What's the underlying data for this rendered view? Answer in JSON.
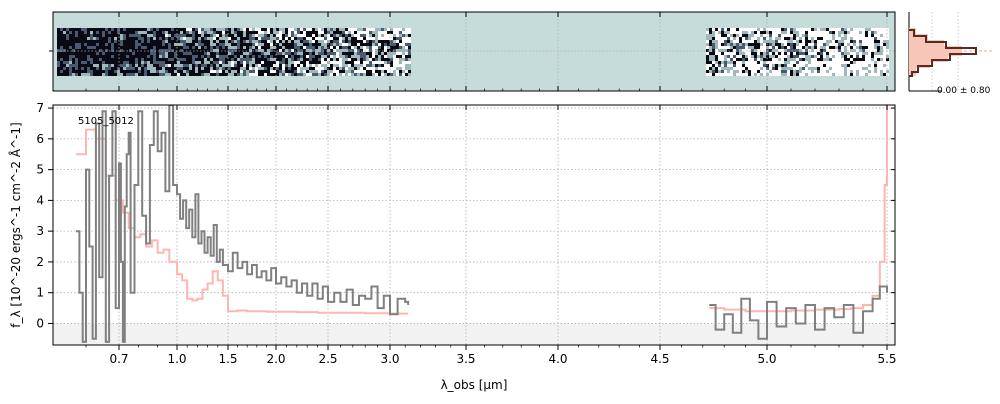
{
  "chart_data": {
    "type": "line",
    "object_label": "5105_5012",
    "xlabel": "λ_obs [μm]",
    "ylabel": "f_λ [10^-20 ergs^-1 cm^-2 Å^-1]",
    "xticks": [
      "0.7",
      "1.0",
      "1.5",
      "2.0",
      "2.5",
      "3.0",
      "3.5",
      "4.0",
      "4.5",
      "5.0",
      "5.5"
    ],
    "yticks": [
      "0",
      "1",
      "2",
      "3",
      "4",
      "5",
      "6",
      "7"
    ],
    "ylim": [
      -0.7,
      7.1
    ],
    "grid": true,
    "inset_label": "-0.00 ± 0.80",
    "colors": {
      "data": "#808080",
      "model": "#ffb6b0",
      "image_bg": "#c5dcda",
      "zero_band": "#f2f2f2",
      "inset_hist": "#5a2a20",
      "inset_fill": "#f7c6b8"
    },
    "series": [
      {
        "name": "",
        "role": "data",
        "x": [
          0.57,
          0.58,
          0.59,
          0.6,
          0.61,
          0.62,
          0.63,
          0.64,
          0.65,
          0.66,
          0.67,
          0.68,
          0.69,
          0.7,
          0.71,
          0.72,
          0.73,
          0.74,
          0.75,
          0.76,
          0.78,
          0.8,
          0.82,
          0.84,
          0.86,
          0.88,
          0.9,
          0.92,
          0.94,
          0.96,
          0.98,
          1.0,
          1.03,
          1.06,
          1.09,
          1.12,
          1.15,
          1.18,
          1.21,
          1.24,
          1.27,
          1.3,
          1.33,
          1.36,
          1.39,
          1.42,
          1.45,
          1.5,
          1.55,
          1.6,
          1.65,
          1.7,
          1.75,
          1.8,
          1.85,
          1.9,
          1.95,
          2.0,
          2.05,
          2.1,
          2.15,
          2.2,
          2.25,
          2.3,
          2.35,
          2.4,
          2.45,
          2.5,
          2.55,
          2.6,
          2.65,
          2.7,
          2.75,
          2.8,
          2.85,
          2.9,
          2.95,
          3.0,
          3.05,
          3.1,
          3.12,
          4.73,
          4.76,
          4.8,
          4.84,
          4.88,
          4.92,
          4.96,
          5.0,
          5.04,
          5.08,
          5.12,
          5.16,
          5.2,
          5.24,
          5.28,
          5.32,
          5.36,
          5.4,
          5.44,
          5.47,
          5.5
        ],
        "y": [
          3.0,
          1.0,
          -0.6,
          5.0,
          2.5,
          -0.5,
          6.5,
          1.5,
          6.9,
          -0.6,
          4.8,
          6.9,
          0.5,
          5.2,
          2.0,
          -0.6,
          3.8,
          5.5,
          6.2,
          1.0,
          4.5,
          6.9,
          3.5,
          2.6,
          5.8,
          6.9,
          5.6,
          6.2,
          4.3,
          7.1,
          4.5,
          4.2,
          3.4,
          4.0,
          3.1,
          3.7,
          2.8,
          4.2,
          2.6,
          3.0,
          2.3,
          2.8,
          2.2,
          3.2,
          2.0,
          2.4,
          1.9,
          1.7,
          2.3,
          1.8,
          2.0,
          1.6,
          1.9,
          1.5,
          1.7,
          1.4,
          1.8,
          1.3,
          1.5,
          1.2,
          1.4,
          1.0,
          1.3,
          0.9,
          1.3,
          0.8,
          1.2,
          0.7,
          1.0,
          0.7,
          1.1,
          0.6,
          0.9,
          0.8,
          1.2,
          0.5,
          0.9,
          0.3,
          0.8,
          0.7,
          0.6,
          0.6,
          -0.2,
          0.3,
          -0.3,
          0.8,
          0.1,
          -0.5,
          0.7,
          -0.1,
          0.5,
          0.0,
          0.6,
          -0.2,
          0.5,
          0.2,
          0.6,
          -0.3,
          0.4,
          0.8,
          1.2,
          1.0
        ]
      },
      {
        "name": "",
        "role": "model",
        "x": [
          0.57,
          0.6,
          0.63,
          0.66,
          0.69,
          0.72,
          0.75,
          0.78,
          0.81,
          0.84,
          0.87,
          0.9,
          0.93,
          0.96,
          1.0,
          1.05,
          1.1,
          1.15,
          1.2,
          1.25,
          1.3,
          1.35,
          1.4,
          1.45,
          1.5,
          1.6,
          1.7,
          1.8,
          1.9,
          2.0,
          2.2,
          2.4,
          2.6,
          2.8,
          3.0,
          3.12,
          4.73,
          4.8,
          4.9,
          5.0,
          5.1,
          5.2,
          5.3,
          5.35,
          5.4,
          5.44,
          5.47,
          5.49,
          5.5
        ],
        "y": [
          5.5,
          6.3,
          6.0,
          4.8,
          4.0,
          3.6,
          3.1,
          2.8,
          2.9,
          2.5,
          2.7,
          2.3,
          2.4,
          2.0,
          1.6,
          1.4,
          0.8,
          0.75,
          0.8,
          1.1,
          1.3,
          1.7,
          1.4,
          0.9,
          0.4,
          0.42,
          0.4,
          0.4,
          0.38,
          0.38,
          0.37,
          0.35,
          0.35,
          0.33,
          0.32,
          0.32,
          0.5,
          0.45,
          0.4,
          0.4,
          0.42,
          0.45,
          0.47,
          0.5,
          0.6,
          0.9,
          2.0,
          4.5,
          7.1
        ]
      }
    ]
  }
}
